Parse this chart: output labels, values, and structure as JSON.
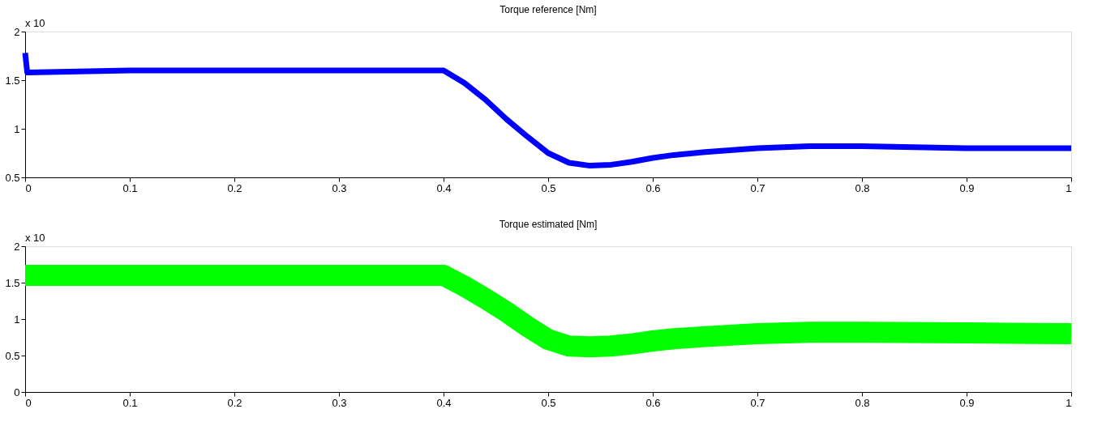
{
  "chart_data": [
    {
      "type": "line",
      "title": "Torque reference [Nm]",
      "annotations": [
        "x 10"
      ],
      "xlim": [
        0,
        1
      ],
      "xticks": [
        0,
        0.1,
        0.2,
        0.3,
        0.4,
        0.5,
        0.6,
        0.7,
        0.8,
        0.9,
        1
      ],
      "ylim": [
        0.5,
        2
      ],
      "yticks": [
        0.5,
        1,
        1.5,
        2
      ],
      "grid": false,
      "x": [
        0,
        0.002,
        0.1,
        0.2,
        0.3,
        0.4,
        0.42,
        0.44,
        0.46,
        0.48,
        0.5,
        0.52,
        0.54,
        0.56,
        0.58,
        0.6,
        0.62,
        0.65,
        0.7,
        0.75,
        0.8,
        0.9,
        1
      ],
      "series": [
        {
          "color": "#0000ff",
          "values": [
            1.78,
            1.58,
            1.6,
            1.6,
            1.6,
            1.6,
            1.47,
            1.3,
            1.1,
            0.92,
            0.75,
            0.65,
            0.62,
            0.63,
            0.66,
            0.7,
            0.73,
            0.76,
            0.8,
            0.82,
            0.82,
            0.8,
            0.8
          ]
        }
      ]
    },
    {
      "type": "line",
      "title": "Torque estimated [Nm]",
      "annotations": [
        "x 10"
      ],
      "xlim": [
        0,
        1
      ],
      "xticks": [
        0,
        0.1,
        0.2,
        0.3,
        0.4,
        0.5,
        0.6,
        0.7,
        0.8,
        0.9,
        1
      ],
      "ylim": [
        0,
        2
      ],
      "yticks": [
        0,
        0.5,
        1,
        1.5,
        2
      ],
      "grid": false,
      "x": [
        0,
        0.1,
        0.2,
        0.3,
        0.4,
        0.42,
        0.44,
        0.46,
        0.48,
        0.5,
        0.52,
        0.54,
        0.56,
        0.58,
        0.6,
        0.62,
        0.65,
        0.7,
        0.75,
        0.8,
        0.9,
        1
      ],
      "series": [
        {
          "color": "#00ff00",
          "values": [
            1.6,
            1.6,
            1.6,
            1.6,
            1.6,
            1.45,
            1.28,
            1.1,
            0.9,
            0.72,
            0.63,
            0.62,
            0.63,
            0.66,
            0.7,
            0.73,
            0.76,
            0.8,
            0.82,
            0.82,
            0.81,
            0.8
          ]
        }
      ]
    }
  ]
}
